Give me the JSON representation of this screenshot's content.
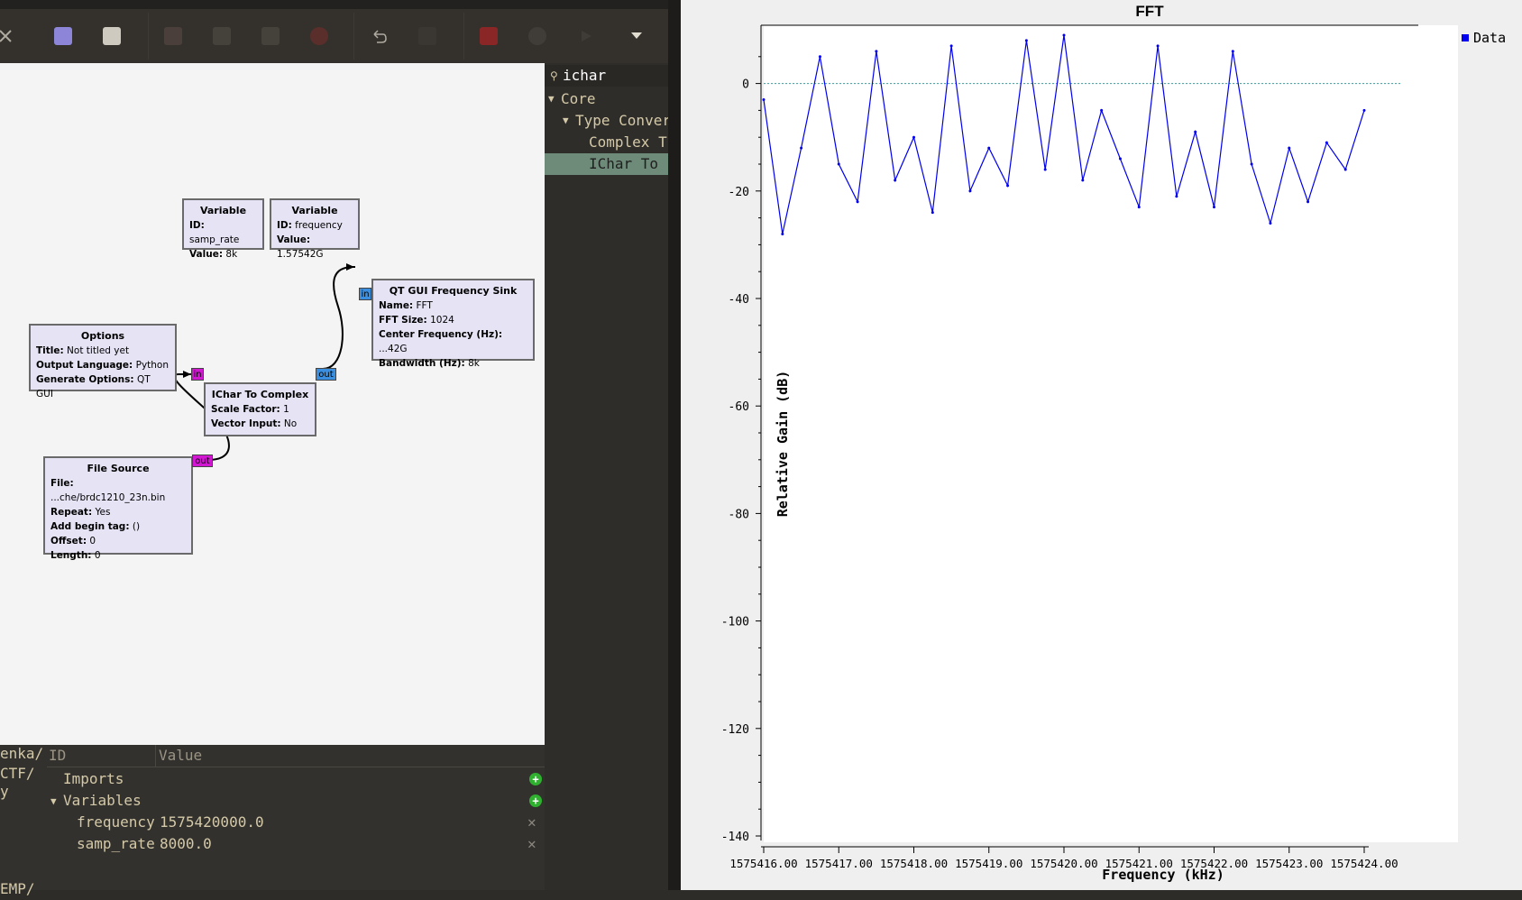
{
  "toolbar": {
    "icons": [
      "close-icon",
      "new-file-icon",
      "save-icon",
      "cut-icon",
      "copy-icon",
      "paste-icon",
      "delete-icon",
      "undo-icon",
      "redo-icon",
      "error-icon",
      "bulb-icon",
      "run-icon",
      "dropdown-icon"
    ]
  },
  "blocks": {
    "var1": {
      "title": "Variable",
      "id_label": "ID:",
      "id_value": "samp_rate",
      "value_label": "Value:",
      "value_value": "8k"
    },
    "var2": {
      "title": "Variable",
      "id_label": "ID:",
      "id_value": "frequency",
      "value_label": "Value:",
      "value_value": "1.57542G"
    },
    "sink": {
      "title": "QT GUI Frequency Sink",
      "name_label": "Name:",
      "name_value": "FFT",
      "fft_label": "FFT Size:",
      "fft_value": "1024",
      "center_label": "Center Frequency (Hz):",
      "center_value": "...42G",
      "bw_label": "Bandwidth (Hz):",
      "bw_value": "8k"
    },
    "options": {
      "title": "Options",
      "title_label": "Title:",
      "title_value": "Not titled yet",
      "lang_label": "Output Language:",
      "lang_value": "Python",
      "gen_label": "Generate Options:",
      "gen_value": "QT GUI"
    },
    "ichar": {
      "title": "IChar To Complex",
      "scale_label": "Scale Factor:",
      "scale_value": "1",
      "vec_label": "Vector Input:",
      "vec_value": "No"
    },
    "file": {
      "title": "File Source",
      "file_label": "File:",
      "file_value": "...che/brdc1210_23n.bin",
      "repeat_label": "Repeat:",
      "repeat_value": "Yes",
      "tag_label": "Add begin tag:",
      "tag_value": "()",
      "offset_label": "Offset:",
      "offset_value": "0",
      "len_label": "Length:",
      "len_value": "0"
    }
  },
  "ports": {
    "in": "in",
    "out": "out"
  },
  "sidebar": {
    "search": "ichar",
    "core": "Core",
    "type_conv": "Type Conver",
    "complex": "Complex T",
    "ichar": "IChar To"
  },
  "bottom": {
    "left_paths": [
      "enka/",
      "CTF/",
      "y",
      "EMP/"
    ],
    "col_id": "ID",
    "col_value": "Value",
    "imports": "Imports",
    "variables": "Variables",
    "freq_id": "frequency",
    "freq_val": "1575420000.0",
    "samp_id": "samp_rate",
    "samp_val": "8000.0"
  },
  "colors": {
    "series": "#0000ee",
    "reference": "#30a0a0"
  },
  "chart_data": {
    "type": "line",
    "title": "FFT",
    "xlabel": "Frequency (kHz)",
    "ylabel": "Relative Gain (dB)",
    "legend": [
      "Data"
    ],
    "legend_position": "top-right",
    "xlim": [
      1575416.0,
      1575424.0
    ],
    "ylim": [
      -140,
      10
    ],
    "x_ticks": [
      "1575416.00",
      "1575417.00",
      "1575418.00",
      "1575419.00",
      "1575420.00",
      "1575421.00",
      "1575422.00",
      "1575423.00",
      "1575424.00"
    ],
    "y_ticks": [
      "0",
      "-20",
      "-40",
      "-60",
      "-80",
      "-100",
      "-120",
      "-140"
    ],
    "reference_y": 0,
    "series": [
      {
        "name": "Data",
        "x": [
          1575416.0,
          1575416.25,
          1575416.5,
          1575416.75,
          1575417.0,
          1575417.25,
          1575417.5,
          1575417.75,
          1575418.0,
          1575418.25,
          1575418.5,
          1575418.75,
          1575419.0,
          1575419.25,
          1575419.5,
          1575419.75,
          1575420.0,
          1575420.25,
          1575420.5,
          1575420.75,
          1575421.0,
          1575421.25,
          1575421.5,
          1575421.75,
          1575422.0,
          1575422.25,
          1575422.5,
          1575422.75,
          1575423.0,
          1575423.25,
          1575423.5,
          1575423.75,
          1575424.0
        ],
        "y": [
          -3,
          -28,
          -12,
          5,
          -15,
          -22,
          6,
          -18,
          -10,
          -24,
          7,
          -20,
          -12,
          -19,
          8,
          -16,
          9,
          -18,
          -5,
          -14,
          -23,
          7,
          -21,
          -9,
          -23,
          6,
          -15,
          -26,
          -12,
          -22,
          -11,
          -16,
          -5
        ]
      }
    ]
  }
}
